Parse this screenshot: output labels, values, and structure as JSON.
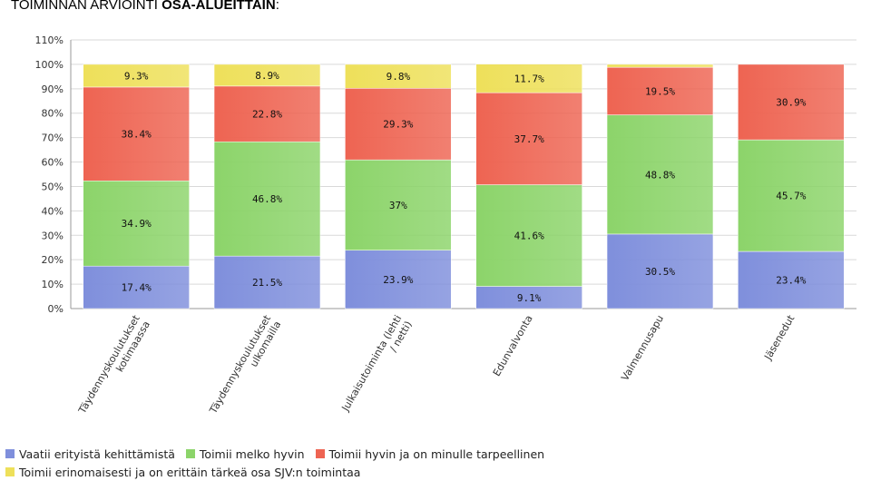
{
  "title": {
    "normal": "TOIMINNAN ARVIOINTI ",
    "bold": "OSA-ALUEITTAIN",
    "suffix": ":"
  },
  "chart_data": {
    "type": "bar",
    "stacked": true,
    "categories": [
      [
        "Täydennyskoulutukset",
        "kotimaassa"
      ],
      [
        "Täydennyskoulutukset",
        "ulkomailla"
      ],
      [
        "Julkaisutoiminta (lehti",
        "/ netti)"
      ],
      [
        "Edunvalvonta"
      ],
      [
        "Valmennusapu"
      ],
      [
        "Jäsenedut"
      ]
    ],
    "series": [
      {
        "name": "Vaatii erityistä kehittämistä",
        "color": "#7f8fdc",
        "values": [
          17.4,
          21.5,
          23.9,
          9.1,
          30.5,
          23.4
        ],
        "labels": [
          "17.4%",
          "21.5%",
          "23.9%",
          "9.1%",
          "30.5%",
          "23.4%"
        ]
      },
      {
        "name": "Toimii melko hyvin",
        "color": "#8cd46a",
        "values": [
          34.9,
          46.8,
          37,
          41.6,
          48.8,
          45.7
        ],
        "labels": [
          "34.9%",
          "46.8%",
          "37%",
          "41.6%",
          "48.8%",
          "45.7%"
        ]
      },
      {
        "name": "Toimii hyvin ja on minulle tarpeellinen",
        "color": "#ee6452",
        "values": [
          38.4,
          22.8,
          29.3,
          37.7,
          19.5,
          30.9
        ],
        "labels": [
          "38.4%",
          "22.8%",
          "29.3%",
          "37.7%",
          "19.5%",
          "30.9%"
        ]
      },
      {
        "name": "Toimii erinomaisesti ja on erittäin tärkeä osa SJV:n toimintaa",
        "color": "#eee05a",
        "values": [
          9.3,
          8.9,
          9.8,
          11.7,
          1.2,
          0
        ],
        "labels": [
          "9.3%",
          "8.9%",
          "9.8%",
          "11.7%",
          "",
          ""
        ]
      }
    ],
    "yticks": [
      "0%",
      "10%",
      "20%",
      "30%",
      "40%",
      "50%",
      "60%",
      "70%",
      "80%",
      "90%",
      "100%",
      "110%"
    ],
    "ylim": [
      0,
      110
    ],
    "grid": true,
    "legend": "bottom"
  }
}
